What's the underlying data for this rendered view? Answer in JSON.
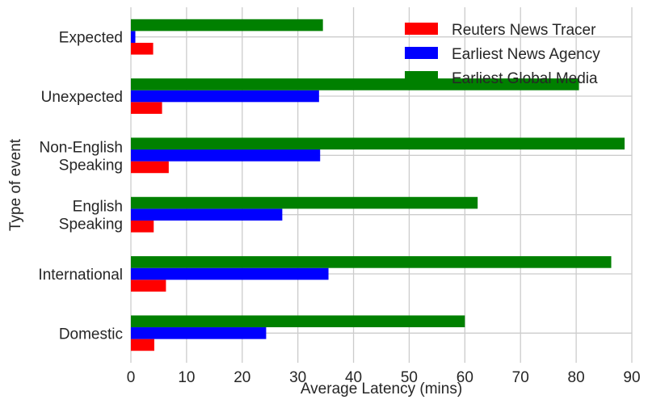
{
  "chart_data": {
    "type": "bar",
    "orientation": "horizontal",
    "xlabel": "Average Latency (mins)",
    "ylabel": "Type of event",
    "xlim": [
      0,
      90
    ],
    "xticks": [
      0,
      10,
      20,
      30,
      40,
      50,
      60,
      70,
      80,
      90
    ],
    "grid": true,
    "legend_position": "top-right",
    "categories": [
      [
        "Domestic"
      ],
      [
        "International"
      ],
      [
        "English",
        "Speaking"
      ],
      [
        "Non-English",
        "Speaking"
      ],
      [
        "Unexpected"
      ],
      [
        "Expected"
      ]
    ],
    "series": [
      {
        "name": "Reuters News Tracer",
        "color": "#ff0000",
        "values": [
          4.2,
          6.3,
          4.1,
          6.8,
          5.6,
          4.0
        ]
      },
      {
        "name": "Earliest News Agency",
        "color": "#0000ff",
        "values": [
          24.3,
          35.5,
          27.2,
          34.0,
          33.8,
          0.8
        ]
      },
      {
        "name": "Earliest Global Media",
        "color": "#008000",
        "values": [
          60.0,
          86.3,
          62.3,
          88.7,
          80.5,
          34.5
        ]
      }
    ]
  }
}
